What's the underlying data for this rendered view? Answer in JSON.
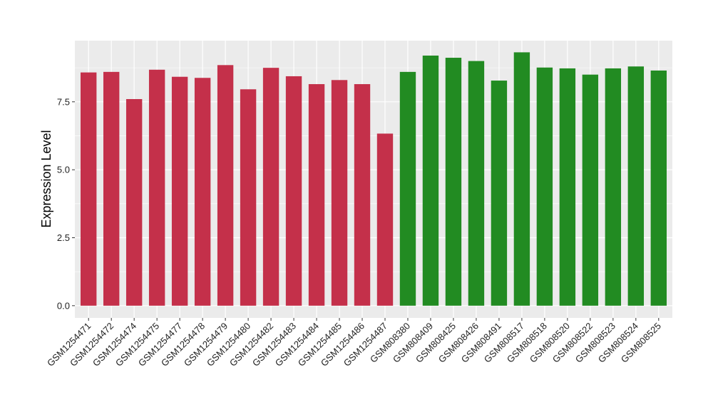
{
  "chart_data": {
    "type": "bar",
    "title": "",
    "xlabel": "",
    "ylabel": "Expression Level",
    "ylim": [
      -0.45,
      9.75
    ],
    "yticks": [
      0.0,
      2.5,
      5.0,
      7.5
    ],
    "ytick_labels": [
      "0.0",
      "2.5",
      "5.0",
      "7.5"
    ],
    "grid": true,
    "legend": "none",
    "colors": {
      "group_1": "#C4304A",
      "group_2": "#228B22",
      "panel_bg": "#EBEBEB",
      "grid": "#FFFFFF"
    },
    "categories": [
      "GSM1254471",
      "GSM1254472",
      "GSM1254474",
      "GSM1254475",
      "GSM1254477",
      "GSM1254478",
      "GSM1254479",
      "GSM1254480",
      "GSM1254482",
      "GSM1254483",
      "GSM1254484",
      "GSM1254485",
      "GSM1254486",
      "GSM1254487",
      "GSM808380",
      "GSM808409",
      "GSM808425",
      "GSM808426",
      "GSM808491",
      "GSM808517",
      "GSM808518",
      "GSM808520",
      "GSM808522",
      "GSM808523",
      "GSM808524",
      "GSM808525"
    ],
    "values": [
      8.58,
      8.6,
      7.6,
      8.68,
      8.42,
      8.38,
      8.85,
      7.96,
      8.75,
      8.44,
      8.15,
      8.3,
      8.15,
      6.33,
      8.6,
      9.2,
      9.12,
      9.0,
      8.28,
      9.32,
      8.76,
      8.73,
      8.5,
      8.73,
      8.8,
      8.65
    ],
    "groups": [
      "group_1",
      "group_1",
      "group_1",
      "group_1",
      "group_1",
      "group_1",
      "group_1",
      "group_1",
      "group_1",
      "group_1",
      "group_1",
      "group_1",
      "group_1",
      "group_1",
      "group_2",
      "group_2",
      "group_2",
      "group_2",
      "group_2",
      "group_2",
      "group_2",
      "group_2",
      "group_2",
      "group_2",
      "group_2",
      "group_2"
    ]
  }
}
